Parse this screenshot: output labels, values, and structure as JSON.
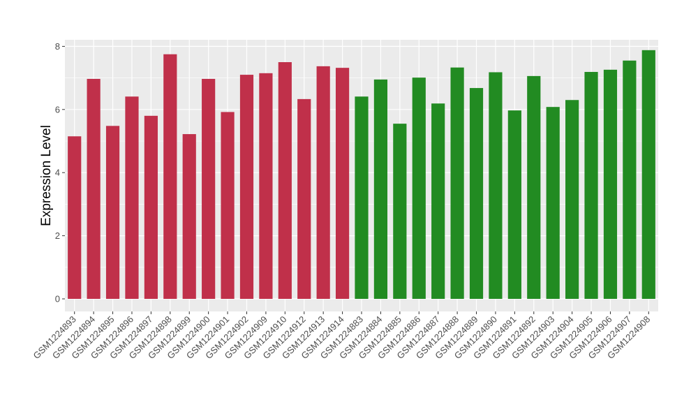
{
  "chart_data": {
    "type": "bar",
    "title": "",
    "xlabel": "",
    "ylabel": "Expression Level",
    "ylim": [
      0,
      8.2
    ],
    "yticks": [
      0,
      2,
      4,
      6,
      8
    ],
    "grid": true,
    "legend": "none",
    "categories": [
      "GSM1224893",
      "GSM1224894",
      "GSM1224895",
      "GSM1224896",
      "GSM1224897",
      "GSM1224898",
      "GSM1224899",
      "GSM1224900",
      "GSM1224901",
      "GSM1224902",
      "GSM1224909",
      "GSM1224910",
      "GSM1224912",
      "GSM1224913",
      "GSM1224914",
      "GSM1224883",
      "GSM1224884",
      "GSM1224885",
      "GSM1224886",
      "GSM1224887",
      "GSM1224888",
      "GSM1224889",
      "GSM1224890",
      "GSM1224891",
      "GSM1224892",
      "GSM1224903",
      "GSM1224904",
      "GSM1224905",
      "GSM1224906",
      "GSM1224907",
      "GSM1224908"
    ],
    "values": [
      5.15,
      6.97,
      5.48,
      6.41,
      5.8,
      7.75,
      5.22,
      6.97,
      5.92,
      7.1,
      7.15,
      7.5,
      6.33,
      7.37,
      7.32,
      6.41,
      6.95,
      5.55,
      7.01,
      6.19,
      7.33,
      6.68,
      7.18,
      5.97,
      7.06,
      6.08,
      6.3,
      7.19,
      7.26,
      7.55,
      7.88
    ],
    "bar_colors": [
      "#C0304A",
      "#C0304A",
      "#C0304A",
      "#C0304A",
      "#C0304A",
      "#C0304A",
      "#C0304A",
      "#C0304A",
      "#C0304A",
      "#C0304A",
      "#C0304A",
      "#C0304A",
      "#C0304A",
      "#C0304A",
      "#C0304A",
      "#228B22",
      "#228B22",
      "#228B22",
      "#228B22",
      "#228B22",
      "#228B22",
      "#228B22",
      "#228B22",
      "#228B22",
      "#228B22",
      "#228B22",
      "#228B22",
      "#228B22",
      "#228B22",
      "#228B22",
      "#228B22"
    ],
    "panel_color": "#EBEBEB",
    "grid_color": "#FFFFFF"
  }
}
